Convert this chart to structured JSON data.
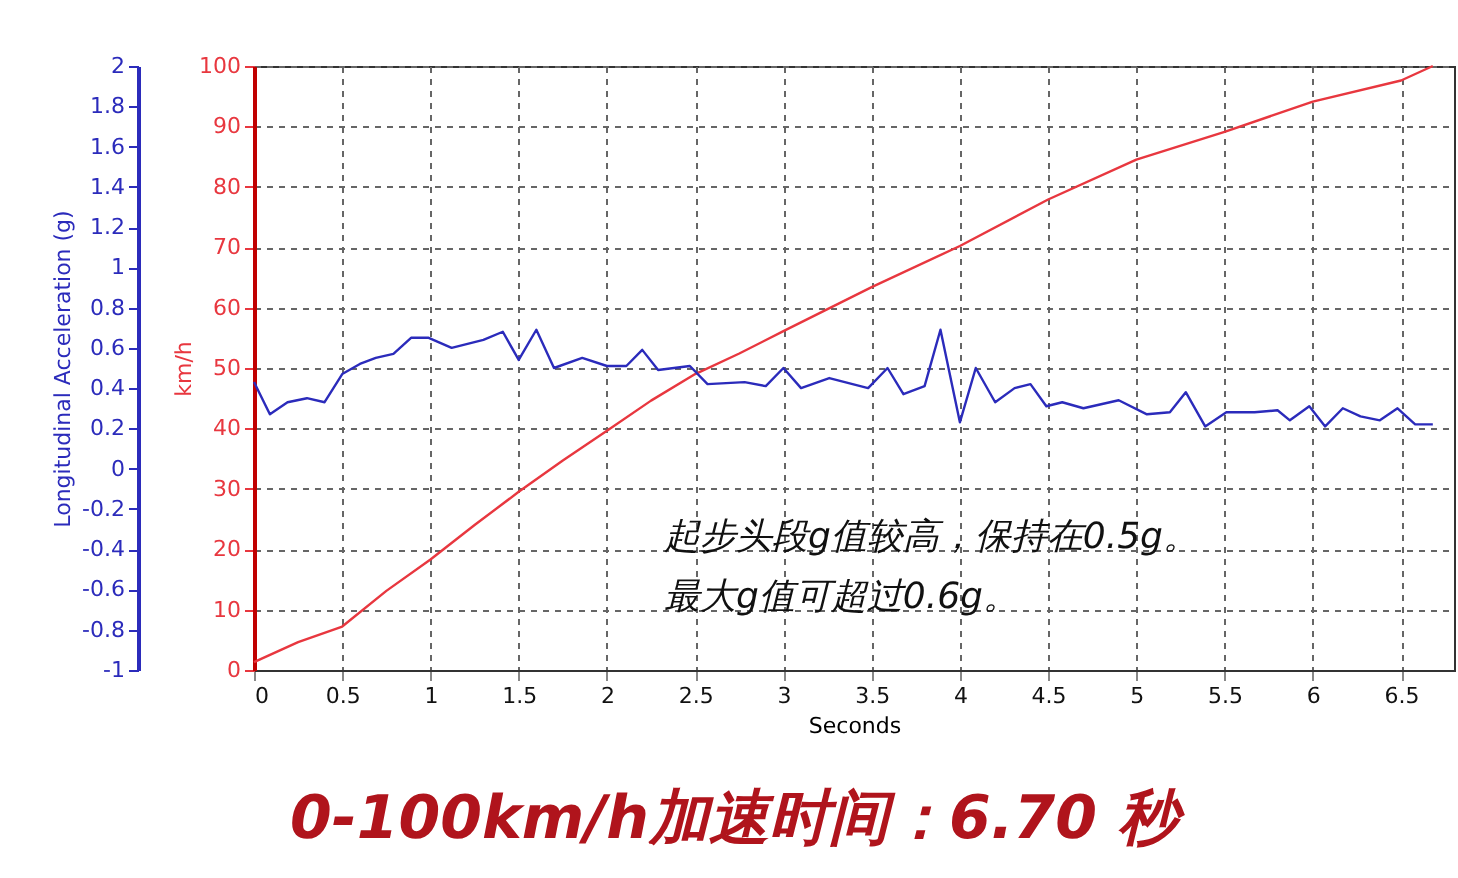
{
  "chart_data": {
    "type": "line",
    "xlabel": "Seconds",
    "ylabel": "km/h",
    "y2label": "Longitudinal Acceleration (g)",
    "xlim": [
      0,
      6.8
    ],
    "xticks": [
      0,
      0.5,
      1,
      1.5,
      2,
      2.5,
      3,
      3.5,
      4,
      4.5,
      5,
      5.5,
      6,
      6.5
    ],
    "ylim": [
      0,
      100
    ],
    "yticks": [
      0,
      10,
      20,
      30,
      40,
      50,
      60,
      70,
      80,
      90,
      100
    ],
    "y2lim": [
      -1,
      2
    ],
    "y2ticks": [
      -1,
      -0.8,
      -0.6,
      -0.4,
      -0.2,
      0,
      0.2,
      0.4,
      0.6,
      0.8,
      1,
      1.2,
      1.4,
      1.6,
      1.8,
      2
    ],
    "grid": true,
    "marker": "none",
    "line_style": "solid",
    "series": [
      {
        "color": "#e8373f",
        "x": [
          0,
          0.25,
          0.5,
          0.75,
          1,
          1.25,
          1.5,
          1.75,
          2,
          2.25,
          2.5,
          2.75,
          3,
          3.5,
          4,
          4.5,
          5,
          5.5,
          6,
          6.5,
          6.68
        ],
        "values": [
          1.3,
          4.6,
          7.2,
          13.1,
          18.3,
          24.0,
          29.5,
          34.7,
          39.6,
          44.6,
          49.0,
          52.4,
          56.1,
          63.4,
          70.2,
          77.9,
          84.5,
          89.1,
          94.1,
          97.6,
          100
        ]
      },
      {
        "color": "#2b2bbb",
        "axis": "y2",
        "x": [
          0,
          0.09,
          0.19,
          0.3,
          0.4,
          0.5,
          0.6,
          0.69,
          0.79,
          0.89,
          0.99,
          1.12,
          1.3,
          1.41,
          1.5,
          1.6,
          1.7,
          1.86,
          2.0,
          2.11,
          2.2,
          2.29,
          2.47,
          2.57,
          2.78,
          2.9,
          3.0,
          3.1,
          3.26,
          3.48,
          3.59,
          3.68,
          3.8,
          3.89,
          4.0,
          4.09,
          4.2,
          4.31,
          4.4,
          4.49,
          4.58,
          4.7,
          4.9,
          5.06,
          5.19,
          5.28,
          5.39,
          5.51,
          5.67,
          5.8,
          5.87,
          5.98,
          6.07,
          6.17,
          6.27,
          6.38,
          6.48,
          6.58,
          6.68
        ],
        "values": [
          0.43,
          0.27,
          0.33,
          0.35,
          0.33,
          0.47,
          0.52,
          0.55,
          0.57,
          0.65,
          0.65,
          0.6,
          0.64,
          0.68,
          0.54,
          0.69,
          0.5,
          0.55,
          0.51,
          0.51,
          0.59,
          0.49,
          0.51,
          0.42,
          0.43,
          0.41,
          0.5,
          0.4,
          0.45,
          0.4,
          0.5,
          0.37,
          0.41,
          0.69,
          0.23,
          0.5,
          0.33,
          0.4,
          0.42,
          0.31,
          0.33,
          0.3,
          0.34,
          0.27,
          0.28,
          0.38,
          0.21,
          0.28,
          0.28,
          0.29,
          0.24,
          0.31,
          0.21,
          0.3,
          0.26,
          0.24,
          0.3,
          0.22,
          0.22
        ]
      }
    ],
    "annotations": [
      "起步头段g值较高，保持在0.5g。",
      "最大g值可超过0.6g。",
      "0-100km/h加速时间：6.70 秒"
    ]
  }
}
